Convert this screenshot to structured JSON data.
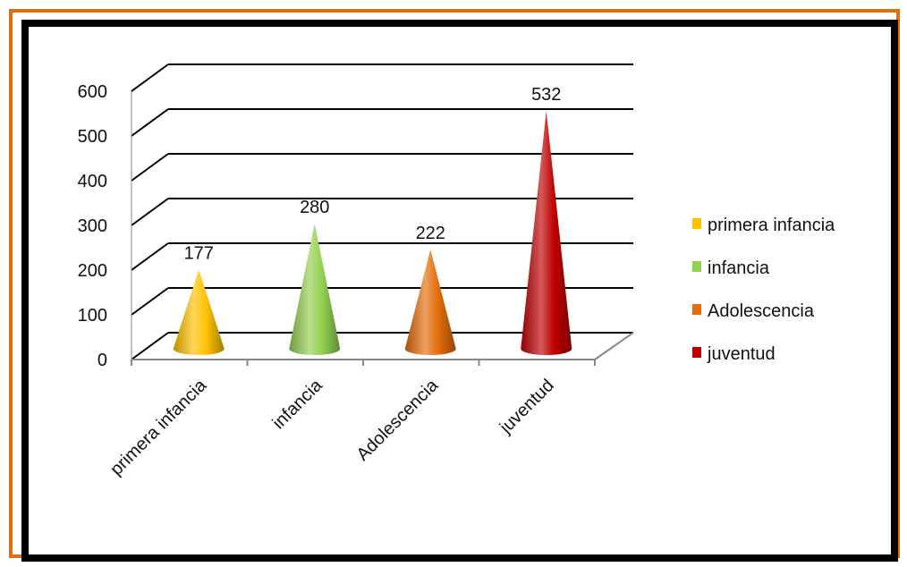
{
  "chart_data": {
    "type": "bar",
    "shape": "cone-3d",
    "categories": [
      "primera infancia",
      "infancia",
      "Adolescencia",
      "juventud"
    ],
    "values": [
      177,
      280,
      222,
      532
    ],
    "data_labels": [
      "177",
      "280",
      "222",
      "532"
    ],
    "colors": [
      "#FFC000",
      "#92D050",
      "#E46C0A",
      "#C00000"
    ],
    "series": [
      {
        "name": "primera infancia",
        "color": "#FFC000"
      },
      {
        "name": "infancia",
        "color": "#92D050"
      },
      {
        "name": "Adolescencia",
        "color": "#E46C0A"
      },
      {
        "name": "juventud",
        "color": "#C00000"
      }
    ],
    "y_ticks": [
      "0",
      "100",
      "200",
      "300",
      "400",
      "500",
      "600"
    ],
    "ylim": [
      0,
      600
    ],
    "grid": true,
    "legend_position": "right"
  }
}
